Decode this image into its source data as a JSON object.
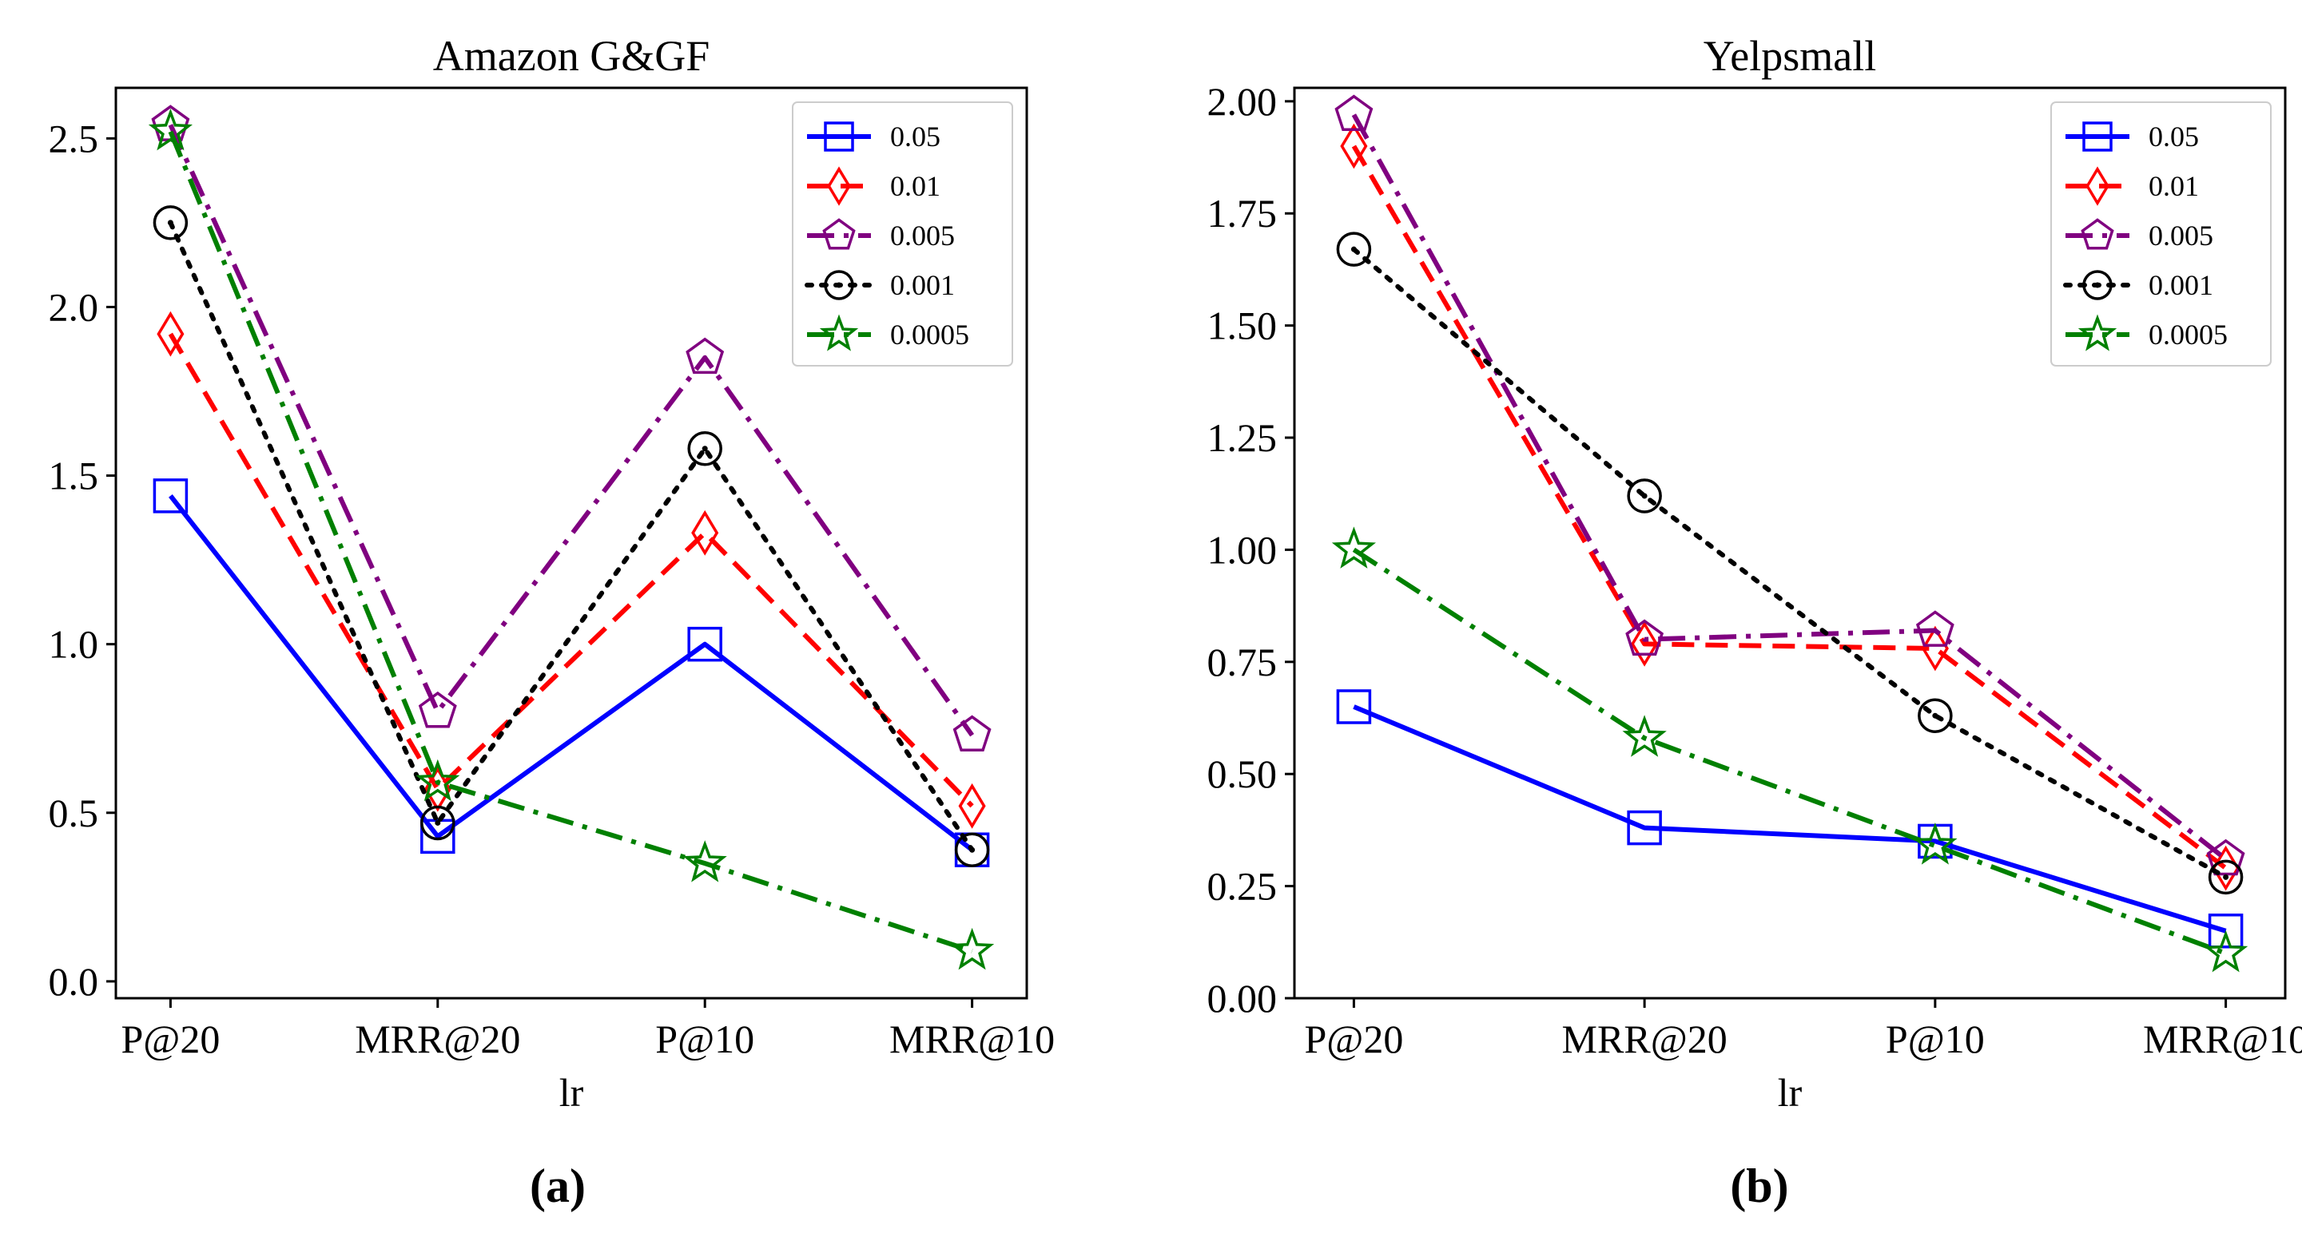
{
  "figure": {
    "panel_labels": [
      "(a)",
      "(b)"
    ]
  },
  "chart_data": [
    {
      "type": "line",
      "title": "Amazon G&GF",
      "xlabel": "lr",
      "ylabel": "",
      "categories": [
        "P@20",
        "MRR@20",
        "P@10",
        "MRR@10"
      ],
      "ylim": [
        -0.05,
        2.65
      ],
      "yticks": [
        "0.0",
        "0.5",
        "1.0",
        "1.5",
        "2.0",
        "2.5"
      ],
      "legend_position": "top-right",
      "grid": false,
      "series": [
        {
          "name": "0.05",
          "values": [
            1.44,
            0.43,
            1.0,
            0.39
          ],
          "color": "#0000ff",
          "dash": "solid",
          "marker": "square"
        },
        {
          "name": "0.01",
          "values": [
            1.92,
            0.57,
            1.33,
            0.52
          ],
          "color": "#ff0000",
          "dash": "dashed",
          "marker": "diamond"
        },
        {
          "name": "0.005",
          "values": [
            2.54,
            0.8,
            1.85,
            0.73
          ],
          "color": "#800080",
          "dash": "dashdot",
          "marker": "pentagon"
        },
        {
          "name": "0.001",
          "values": [
            2.25,
            0.47,
            1.58,
            0.39
          ],
          "color": "#000000",
          "dash": "dotted",
          "marker": "circle"
        },
        {
          "name": "0.0005",
          "values": [
            2.52,
            0.59,
            0.35,
            0.09
          ],
          "color": "#008000",
          "dash": "dashdot",
          "marker": "star"
        }
      ]
    },
    {
      "type": "line",
      "title": "Yelpsmall",
      "xlabel": "lr",
      "ylabel": "",
      "categories": [
        "P@20",
        "MRR@20",
        "P@10",
        "MRR@10"
      ],
      "ylim": [
        0.0,
        2.03
      ],
      "yticks": [
        "0.00",
        "0.25",
        "0.50",
        "0.75",
        "1.00",
        "1.25",
        "1.50",
        "1.75",
        "2.00"
      ],
      "legend_position": "top-right",
      "grid": false,
      "series": [
        {
          "name": "0.05",
          "values": [
            0.65,
            0.38,
            0.35,
            0.15
          ],
          "color": "#0000ff",
          "dash": "solid",
          "marker": "square"
        },
        {
          "name": "0.01",
          "values": [
            1.9,
            0.79,
            0.78,
            0.29
          ],
          "color": "#ff0000",
          "dash": "dashed",
          "marker": "diamond"
        },
        {
          "name": "0.005",
          "values": [
            1.97,
            0.8,
            0.82,
            0.31
          ],
          "color": "#800080",
          "dash": "dashdot",
          "marker": "pentagon"
        },
        {
          "name": "0.001",
          "values": [
            1.67,
            1.12,
            0.63,
            0.27
          ],
          "color": "#000000",
          "dash": "dotted",
          "marker": "circle"
        },
        {
          "name": "0.0005",
          "values": [
            1.0,
            0.58,
            0.34,
            0.1
          ],
          "color": "#008000",
          "dash": "dashdot",
          "marker": "star"
        }
      ]
    }
  ]
}
